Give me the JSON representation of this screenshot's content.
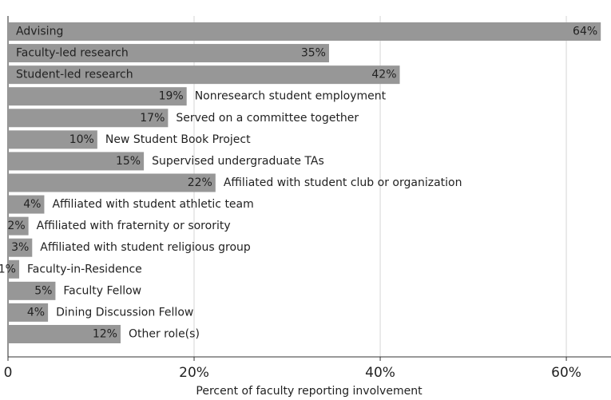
{
  "chart_data": {
    "type": "barh",
    "xlabel": "Percent of faculty reporting involvement",
    "categories": [
      "Advising",
      "Faculty-led research",
      "Student-led research",
      "Nonresearch student employment",
      "Served on a committee together",
      "New Student Book Project",
      "Supervised undergraduate TAs",
      "Affiliated with student club or organization",
      "Affiliated with student athletic team",
      "Affiliated with fraternity or sorority",
      "Affiliated with student religious group",
      "Faculty-in-Residence",
      "Faculty Fellow",
      "Dining Discussion Fellow",
      "Other role(s)"
    ],
    "values": [
      63.7,
      34.5,
      42.1,
      19.2,
      17.2,
      9.6,
      14.6,
      22.3,
      3.9,
      2.2,
      2.6,
      1.2,
      5.1,
      4.3,
      12.1
    ],
    "value_labels": [
      "64%",
      "35%",
      "42%",
      "19%",
      "17%",
      "10%",
      "15%",
      "22%",
      "4%",
      "2%",
      "3%",
      "1%",
      "5%",
      "4%",
      "12%"
    ],
    "color": "#979797",
    "xlim": [
      0,
      64.8
    ],
    "xticks": [
      0,
      {
        "value": 20,
        "label": "20%"
      },
      {
        "value": 40,
        "label": "40%"
      },
      {
        "value": 60,
        "label": "60%"
      }
    ],
    "grid": true
  }
}
